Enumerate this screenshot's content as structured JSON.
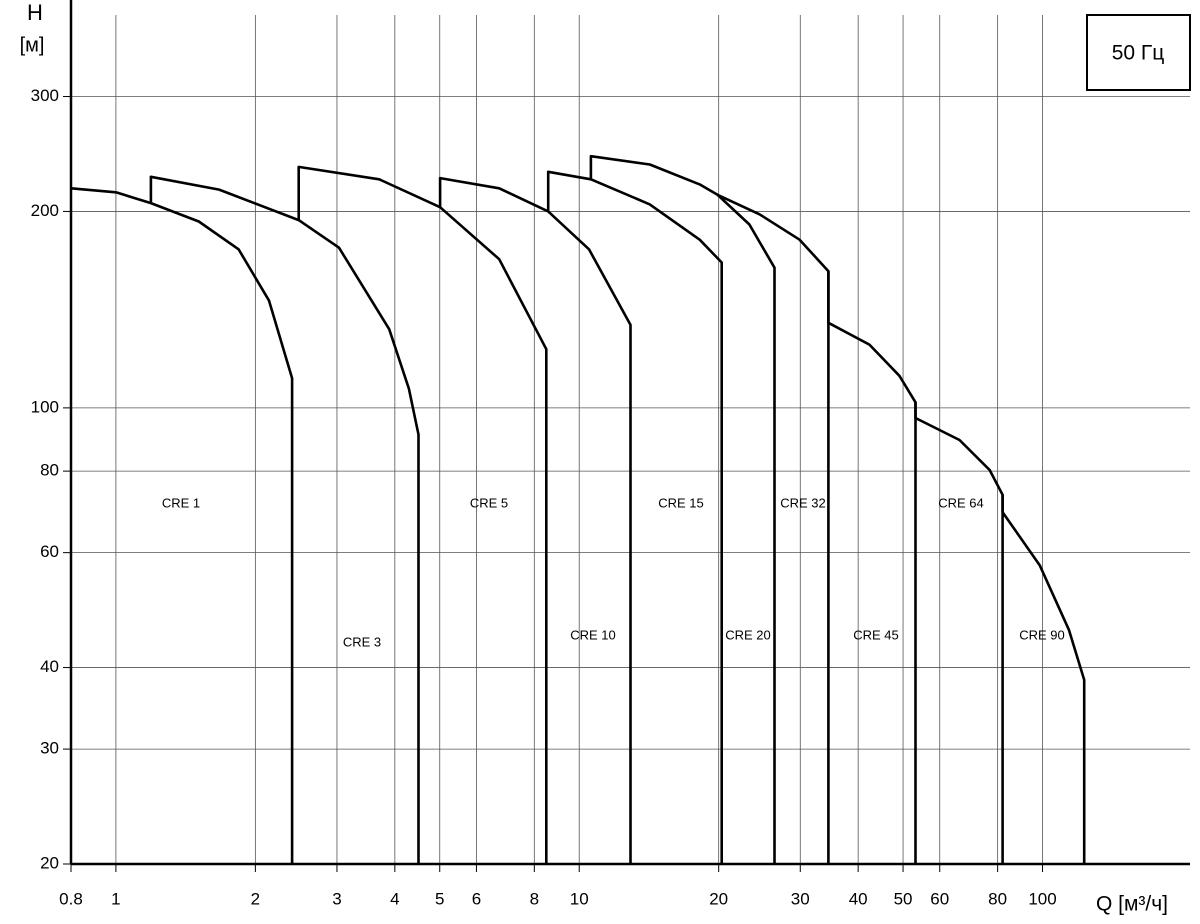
{
  "chart_data": {
    "type": "line",
    "y_label": "H",
    "y_unit": "[м]",
    "x_label": "Q [м³/ч]",
    "badge": "50 Гц",
    "xscale": "log",
    "yscale": "log",
    "grid": true,
    "xlim": [
      0.8,
      200
    ],
    "ylim": [
      20,
      400
    ],
    "xticks": [
      0.8,
      1,
      2,
      3,
      4,
      5,
      6,
      8,
      10,
      20,
      30,
      40,
      50,
      60,
      80,
      100
    ],
    "yticks": [
      20,
      30,
      40,
      60,
      80,
      100,
      200,
      300
    ],
    "series": [
      {
        "name": "CRE 1",
        "color": "#000000",
        "x": [
          0.8,
          1,
          1.19,
          1.51,
          1.84,
          2.14,
          2.4,
          2.4
        ],
        "values": [
          217,
          214,
          206,
          193,
          175,
          146,
          111,
          20
        ]
      },
      {
        "name": "CRE 3",
        "color": "#000000",
        "x": [
          1.19,
          1.19,
          1.67,
          2.48,
          3.03,
          3.89,
          4.29,
          4.5,
          4.5
        ],
        "values": [
          206,
          226,
          216,
          194,
          176,
          132,
          107,
          91,
          20
        ]
      },
      {
        "name": "CRE 5",
        "color": "#000000",
        "x": [
          2.48,
          2.48,
          3.7,
          5.01,
          6.72,
          8.49,
          8.49
        ],
        "values": [
          194,
          234,
          224,
          203,
          169,
          123,
          20
        ]
      },
      {
        "name": "CRE 10",
        "color": "#000000",
        "x": [
          5.01,
          5.01,
          6.72,
          8.57,
          10.5,
          12.9,
          12.9
        ],
        "values": [
          203,
          225,
          217,
          200,
          175,
          134,
          20
        ]
      },
      {
        "name": "CRE 15",
        "color": "#000000",
        "x": [
          8.57,
          8.57,
          10.6,
          14.2,
          18.2,
          20.3,
          20.3
        ],
        "values": [
          200,
          230,
          224,
          205,
          181,
          167,
          20
        ]
      },
      {
        "name": "CRE 20",
        "color": "#000000",
        "x": [
          10.6,
          10.6,
          14.2,
          18.2,
          19.9,
          23.3,
          26.4,
          26.4
        ],
        "values": [
          224,
          243,
          236,
          220,
          212,
          191,
          164,
          20
        ]
      },
      {
        "name": "CRE 32",
        "color": "#000000",
        "x": [
          19.9,
          24.5,
          29.9,
          34.5,
          34.5
        ],
        "values": [
          212,
          198,
          181,
          162,
          20
        ]
      },
      {
        "name": "CRE 45",
        "color": "#000000",
        "x": [
          34.5,
          34.5,
          42.3,
          49.1,
          53.2,
          53.2
        ],
        "values": [
          162,
          135,
          125,
          112,
          102,
          20
        ]
      },
      {
        "name": "CRE 64",
        "color": "#000000",
        "x": [
          53.2,
          53.2,
          66.2,
          76.9,
          82,
          82
        ],
        "values": [
          102,
          96.5,
          89.3,
          80.3,
          73.6,
          20
        ]
      },
      {
        "name": "CRE 90",
        "color": "#000000",
        "x": [
          82,
          82,
          98.6,
          114,
          123,
          123
        ],
        "values": [
          73.6,
          69.2,
          57.4,
          45.7,
          38.3,
          20
        ]
      }
    ]
  }
}
